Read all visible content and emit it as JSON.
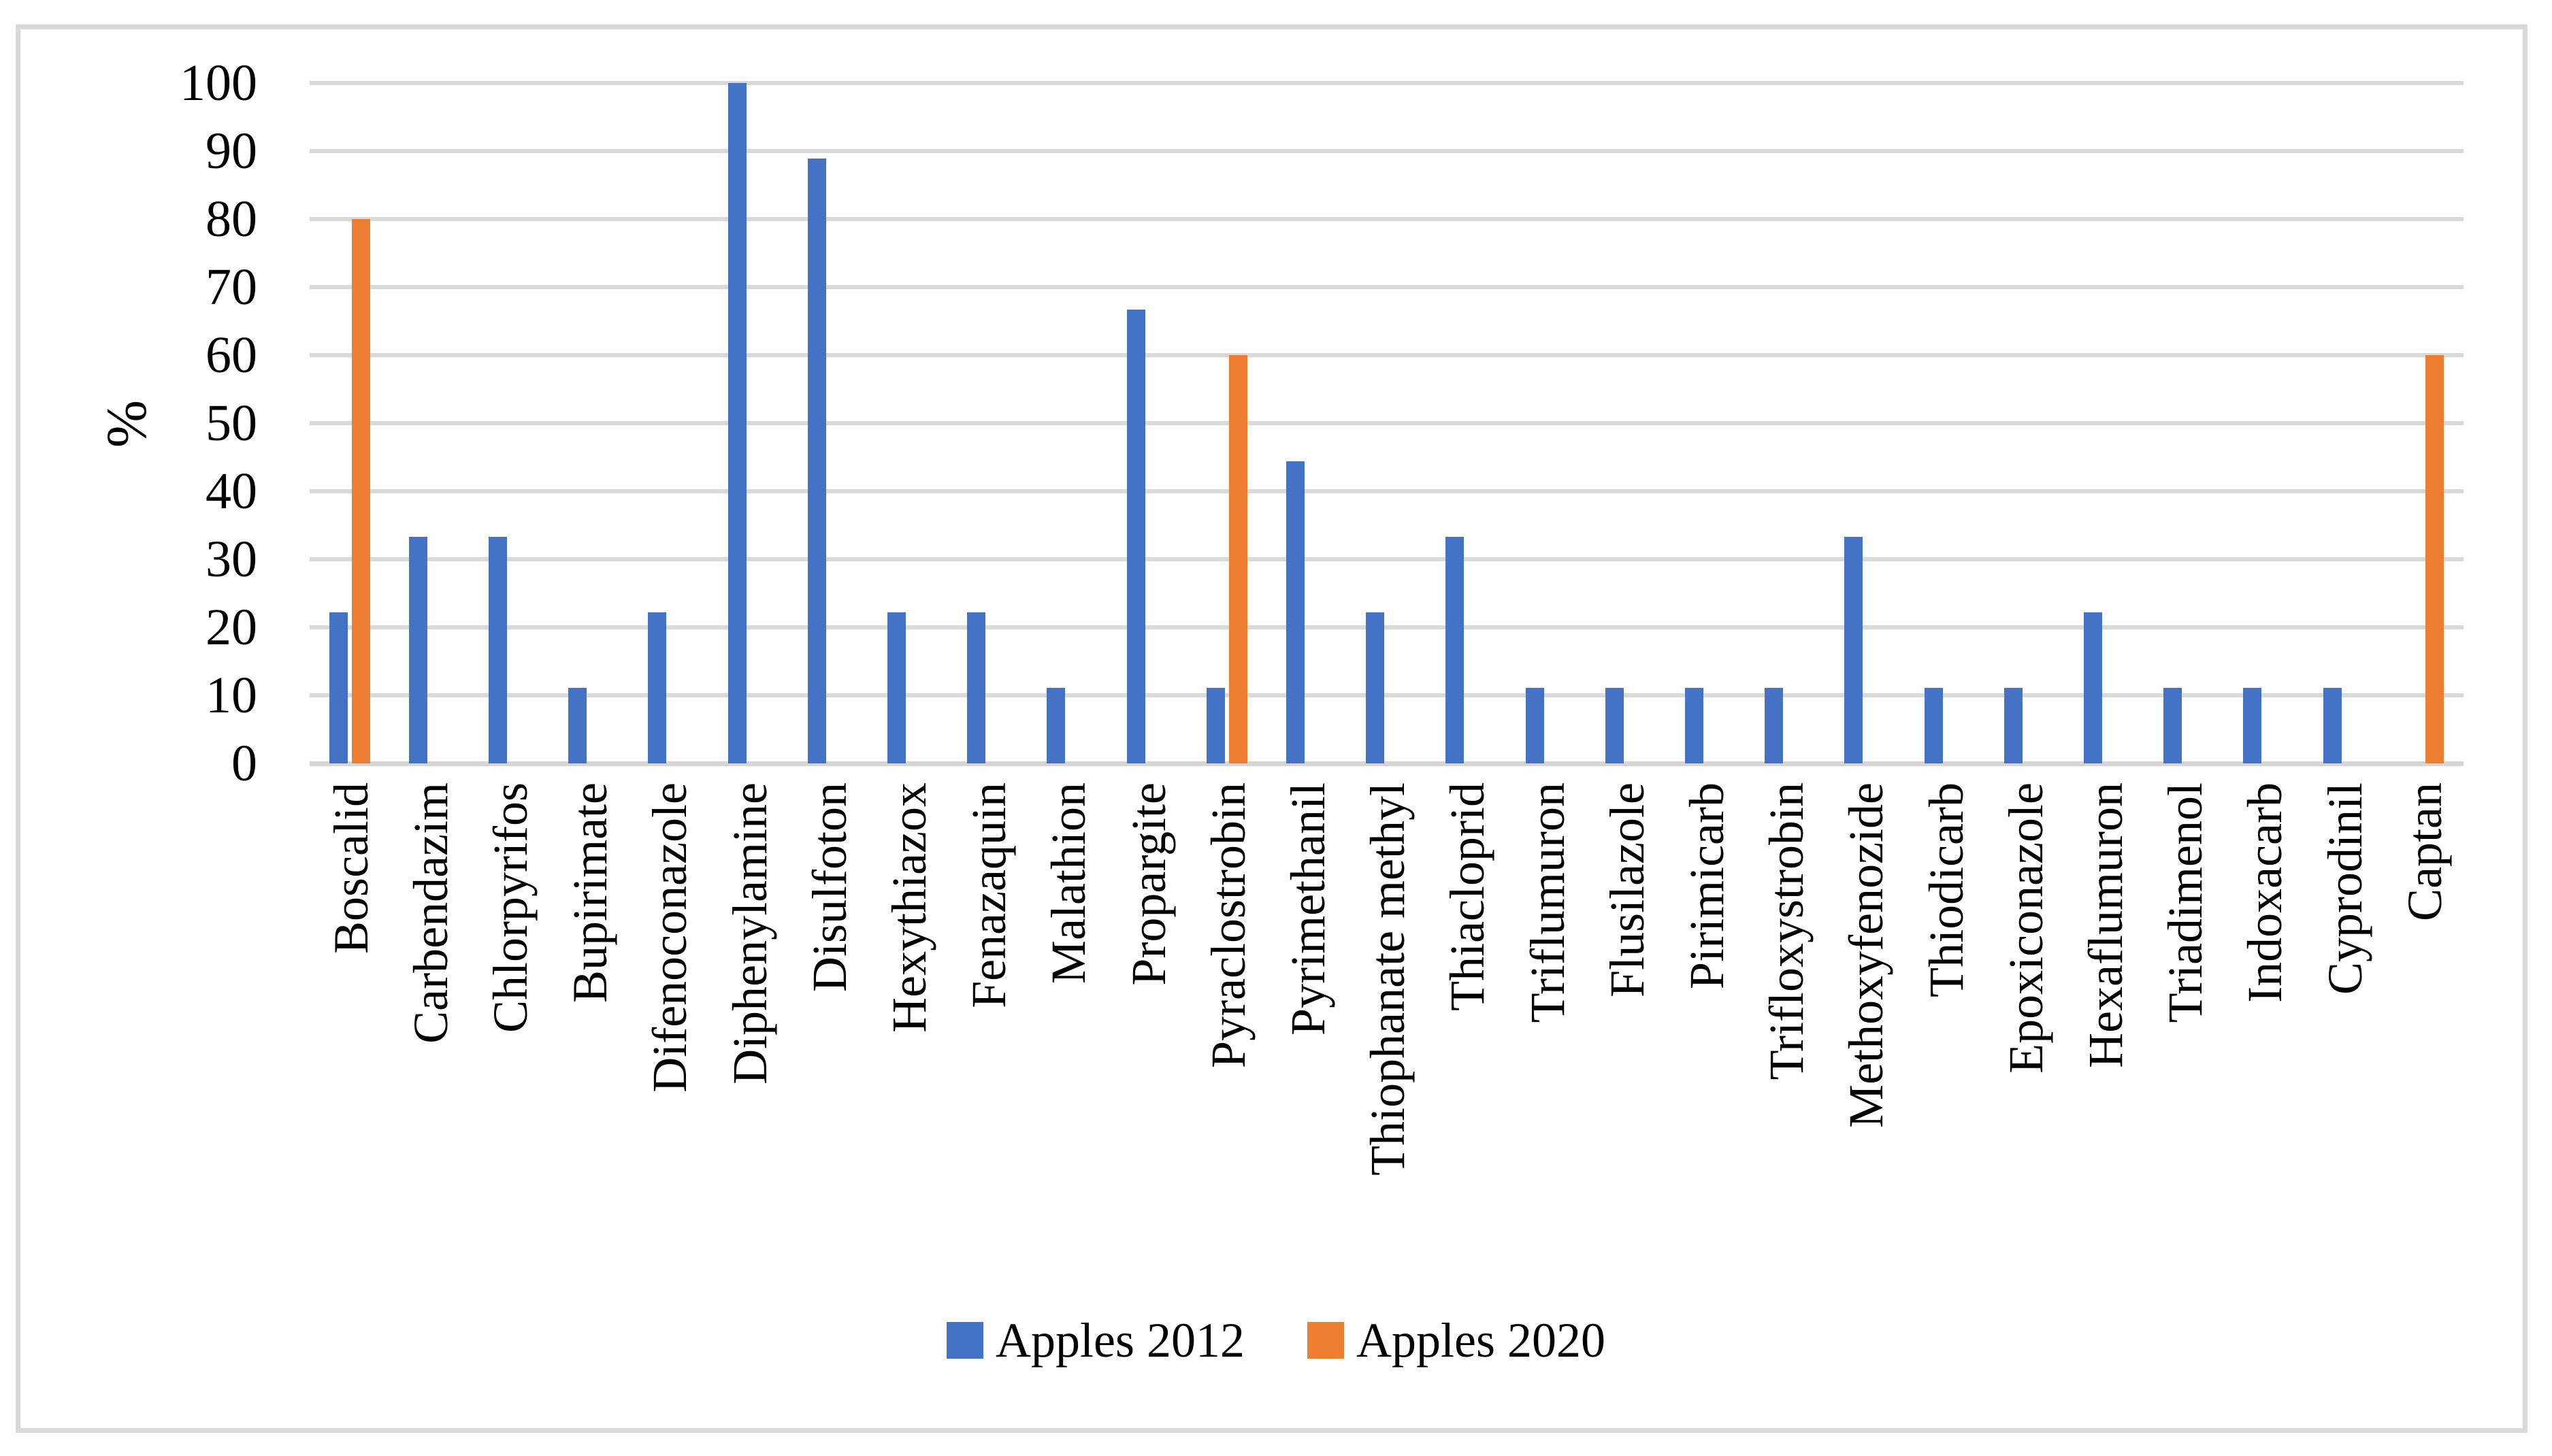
{
  "figure": {
    "background": "#FFFFFF",
    "border_color": "#D9D9D9"
  },
  "chart_data": {
    "type": "bar",
    "title": "",
    "xlabel": "",
    "ylabel": "%",
    "ylim": [
      0,
      100
    ],
    "yticks": [
      0,
      10,
      20,
      30,
      40,
      50,
      60,
      70,
      80,
      90,
      100
    ],
    "grid": true,
    "gridline_color": "#D9D9D9",
    "legend_position": "bottom",
    "categories": [
      "Boscalid",
      "Carbendazim",
      "Chlorpyrifos",
      "Bupirimate",
      "Difenoconazole",
      "Diphenylamine",
      "Disulfoton",
      "Hexythiazox",
      "Fenazaquin",
      "Malathion",
      "Propargite",
      "Pyraclostrobin",
      "Pyrimethanil",
      "Thiophanate methyl",
      "Thiacloprid",
      "Triflumuron",
      "Flusilazole",
      "Pirimicarb",
      "Trifloxystrobin",
      "Methoxyfenozide",
      "Thiodicarb",
      "Epoxiconazole",
      "Hexaflumuron",
      "Triadimenol",
      "Indoxacarb",
      "Cyprodinil",
      "Captan"
    ],
    "series": [
      {
        "name": "Apples 2012",
        "color": "#4472C4",
        "values": [
          22.2,
          33.3,
          33.3,
          11.1,
          22.2,
          100,
          88.9,
          22.2,
          22.2,
          11.1,
          66.7,
          11.1,
          44.4,
          22.2,
          33.3,
          11.1,
          11.1,
          11.1,
          11.1,
          33.3,
          11.1,
          11.1,
          22.2,
          11.1,
          11.1,
          11.1,
          0
        ]
      },
      {
        "name": "Apples 2020",
        "color": "#ED7D31",
        "values": [
          80,
          0,
          0,
          0,
          0,
          0,
          0,
          0,
          0,
          0,
          0,
          60,
          0,
          0,
          0,
          0,
          0,
          0,
          0,
          0,
          0,
          0,
          0,
          0,
          0,
          0,
          60
        ]
      }
    ]
  }
}
